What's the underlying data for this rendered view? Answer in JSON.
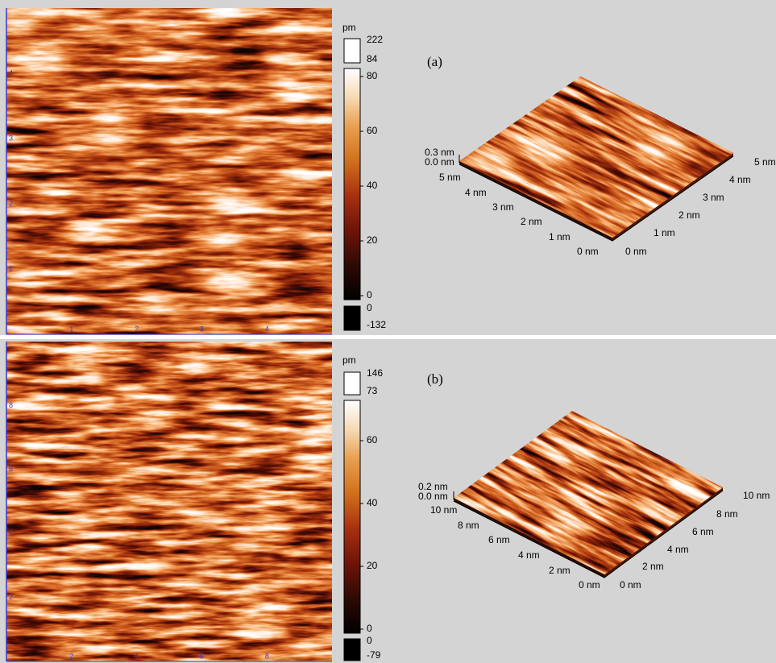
{
  "panels": [
    {
      "label": "(a)",
      "unit": "pm",
      "colorbar": {
        "upper": [
          "222",
          "84"
        ],
        "main": [
          "80",
          "60",
          "40",
          "20",
          "0"
        ],
        "lower": [
          "0",
          "-132"
        ]
      },
      "image_ticks": {
        "bottom": [
          "1",
          "2",
          "3",
          "4"
        ],
        "left": [
          "4",
          "3",
          "2",
          "1"
        ]
      },
      "surface": {
        "z_labels": [
          "0.3 nm",
          "0.0 nm"
        ],
        "left_axis": [
          "5 nm",
          "4 nm",
          "3 nm",
          "2 nm",
          "1 nm",
          "0 nm"
        ],
        "right_axis": [
          "0 nm",
          "1 nm",
          "2 nm",
          "3 nm",
          "4 nm",
          "5 nm"
        ]
      }
    },
    {
      "label": "(b)",
      "unit": "pm",
      "colorbar": {
        "upper": [
          "146",
          "73"
        ],
        "main": [
          "60",
          "40",
          "20",
          "0"
        ],
        "lower": [
          "0",
          "-79"
        ]
      },
      "image_ticks": {
        "bottom": [
          "2",
          "4",
          "6",
          "8"
        ],
        "left": [
          "8",
          "6",
          "4",
          "2"
        ]
      },
      "surface": {
        "z_labels": [
          "0.2 nm",
          "0.0 nm"
        ],
        "left_axis": [
          "10 nm",
          "8 nm",
          "6 nm",
          "4 nm",
          "2 nm",
          "0 nm"
        ],
        "right_axis": [
          "0 nm",
          "2 nm",
          "4 nm",
          "6 nm",
          "8 nm",
          "10 nm"
        ]
      }
    }
  ]
}
